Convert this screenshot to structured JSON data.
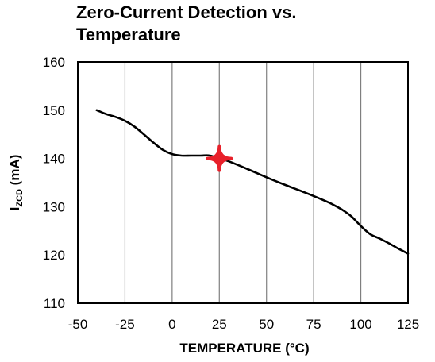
{
  "chart_data": {
    "type": "line",
    "title": "Zero-Current Detection vs.\nTemperature",
    "xlabel": "TEMPERATURE  (°C)",
    "ylabel_main": "I",
    "ylabel_sub": "ZCD",
    "ylabel_unit": " (mA)",
    "xlim": [
      -50,
      125
    ],
    "ylim": [
      110,
      160
    ],
    "xticks": [
      -50,
      -25,
      0,
      25,
      50,
      75,
      100,
      125
    ],
    "yticks": [
      110,
      120,
      130,
      140,
      150,
      160
    ],
    "grid": "vertical",
    "series": [
      {
        "color": "#000000",
        "x": [
          -40,
          -35,
          -30,
          -25,
          -20,
          -15,
          -10,
          -5,
          0,
          5,
          10,
          15,
          20,
          25,
          30,
          40,
          50,
          60,
          70,
          80,
          85,
          90,
          95,
          100,
          105,
          110,
          115,
          120,
          125
        ],
        "y": [
          150,
          149.2,
          148.6,
          147.8,
          146.6,
          145.0,
          143.3,
          141.8,
          140.9,
          140.6,
          140.6,
          140.6,
          140.6,
          140.0,
          139.4,
          137.8,
          136.1,
          134.5,
          133.0,
          131.4,
          130.5,
          129.4,
          128.0,
          126.0,
          124.3,
          123.4,
          122.4,
          121.3,
          120.3
        ]
      }
    ],
    "marker": {
      "x": 25,
      "y": 140,
      "color": "#e8202a"
    }
  }
}
